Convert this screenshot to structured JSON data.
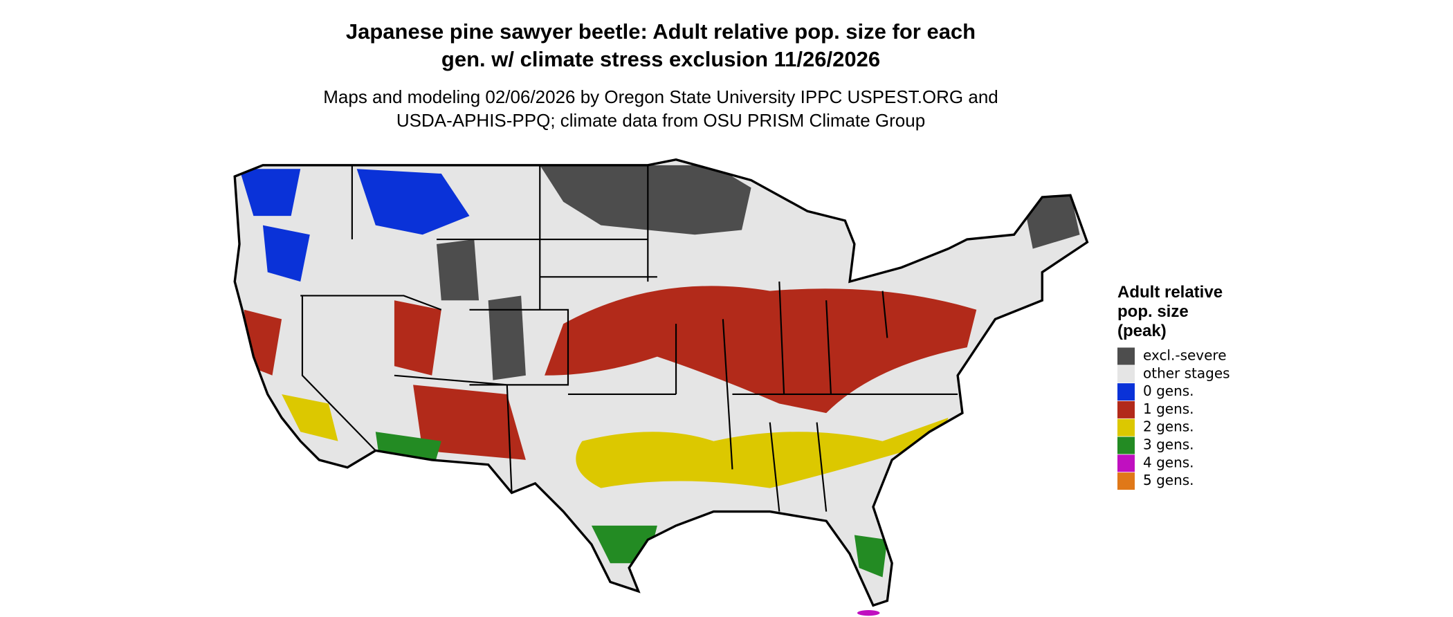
{
  "title": [
    "Japanese pine sawyer beetle: Adult relative pop. size for each",
    "gen. w/ climate stress exclusion 11/26/2026"
  ],
  "subtitle": [
    "Maps and modeling 02/06/2026 by Oregon State University IPPC USPEST.ORG and",
    "USDA-APHIS-PPQ; climate data from OSU PRISM Climate Group"
  ],
  "legend": {
    "title": [
      "Adult relative",
      "pop. size",
      "(peak)"
    ],
    "items": [
      {
        "label": "excl.-severe",
        "color": "#4d4d4d"
      },
      {
        "label": "other stages",
        "color": "#e5e5e5"
      },
      {
        "label": "0 gens.",
        "color": "#0a32d8"
      },
      {
        "label": "1 gens.",
        "color": "#b22a1a"
      },
      {
        "label": "2 gens.",
        "color": "#dcc800"
      },
      {
        "label": "3 gens.",
        "color": "#238b23"
      },
      {
        "label": "4 gens.",
        "color": "#c010c0"
      },
      {
        "label": "5 gens.",
        "color": "#e07818"
      }
    ]
  }
}
